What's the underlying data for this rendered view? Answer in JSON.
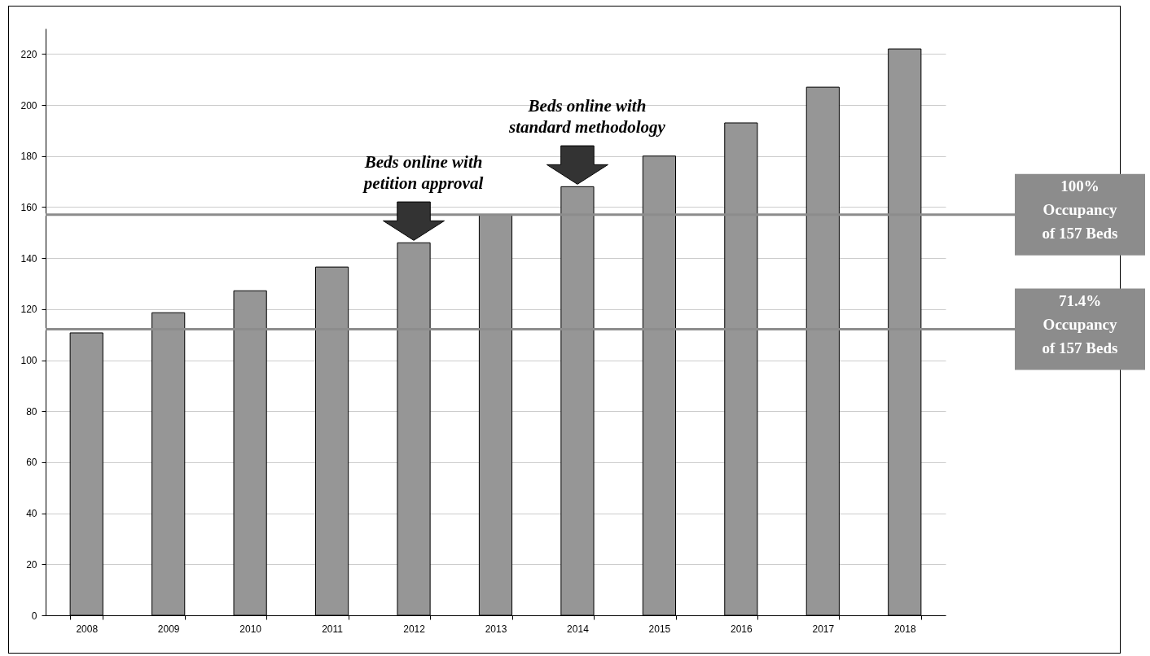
{
  "chart_data": {
    "type": "bar",
    "categories": [
      "2008",
      "2009",
      "2010",
      "2011",
      "2012",
      "2013",
      "2014",
      "2015",
      "2016",
      "2017",
      "2018"
    ],
    "values": [
      110.7,
      118.6,
      127.2,
      136.5,
      146,
      157,
      168,
      180,
      193,
      207,
      222
    ],
    "color": "#969696",
    "ylim": [
      0,
      230
    ],
    "yticks": [
      0,
      20,
      40,
      60,
      80,
      100,
      120,
      140,
      160,
      180,
      200,
      220
    ],
    "grid": "y",
    "ref_lines": [
      {
        "axis": "y",
        "value": 157,
        "label": "100%\nOccupancy\nof 157 Beds",
        "color": "#8c8c8c"
      },
      {
        "axis": "y",
        "value": 112.1,
        "label": "71.4%\nOccupancy\nof 157 Beds",
        "color": "#8c8c8c"
      }
    ],
    "annotations": [
      {
        "text": "Beds online with\npetition approval",
        "x": "2012",
        "y": 146
      },
      {
        "text": "Beds online with\nstandard methodology",
        "x": "2014",
        "y": 168
      }
    ]
  }
}
